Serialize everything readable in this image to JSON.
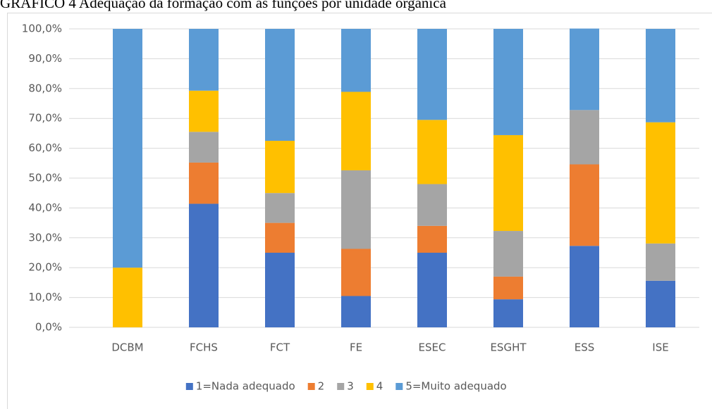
{
  "chart_data": {
    "type": "stacked_bar",
    "title": "GRÁFICO 4 Adequação da formação com as funções por unidade orgânica",
    "categories": [
      "DCBM",
      "FCHS",
      "FCT",
      "FE",
      "ESEC",
      "ESGHT",
      "ESS",
      "ISE"
    ],
    "series": [
      {
        "name": "1=Nada adequado",
        "color": "#4472c4",
        "values": [
          0,
          41.4,
          25,
          10.5,
          25,
          9.4,
          27.3,
          15.6
        ]
      },
      {
        "name": "2",
        "color": "#ed7d31",
        "values": [
          0,
          13.8,
          10,
          15.8,
          9,
          7.6,
          27.3,
          0
        ]
      },
      {
        "name": "3",
        "color": "#a5a5a5",
        "values": [
          0,
          10.3,
          10,
          26.3,
          14,
          15.3,
          18.2,
          12.5
        ]
      },
      {
        "name": "4",
        "color": "#ffc000",
        "values": [
          20,
          13.8,
          17.5,
          26.3,
          21.5,
          32.1,
          0,
          40.6
        ]
      },
      {
        "name": "5=Muito adequado",
        "color": "#5b9bd5",
        "values": [
          80,
          20.7,
          37.5,
          21.1,
          30.5,
          35.6,
          27.3,
          31.3
        ]
      }
    ],
    "ylim": [
      0,
      100
    ],
    "yticks": [
      {
        "value": 0,
        "label": "0,0%"
      },
      {
        "value": 10,
        "label": "10,0%"
      },
      {
        "value": 20,
        "label": "20,0%"
      },
      {
        "value": 30,
        "label": "30,0%"
      },
      {
        "value": 40,
        "label": "40,0%"
      },
      {
        "value": 50,
        "label": "50,0%"
      },
      {
        "value": 60,
        "label": "60,0%"
      },
      {
        "value": 70,
        "label": "70,0%"
      },
      {
        "value": 80,
        "label": "80,0%"
      },
      {
        "value": 90,
        "label": "90,0%"
      },
      {
        "value": 100,
        "label": "100,0%"
      }
    ],
    "grid": true,
    "legend": "bottom"
  }
}
